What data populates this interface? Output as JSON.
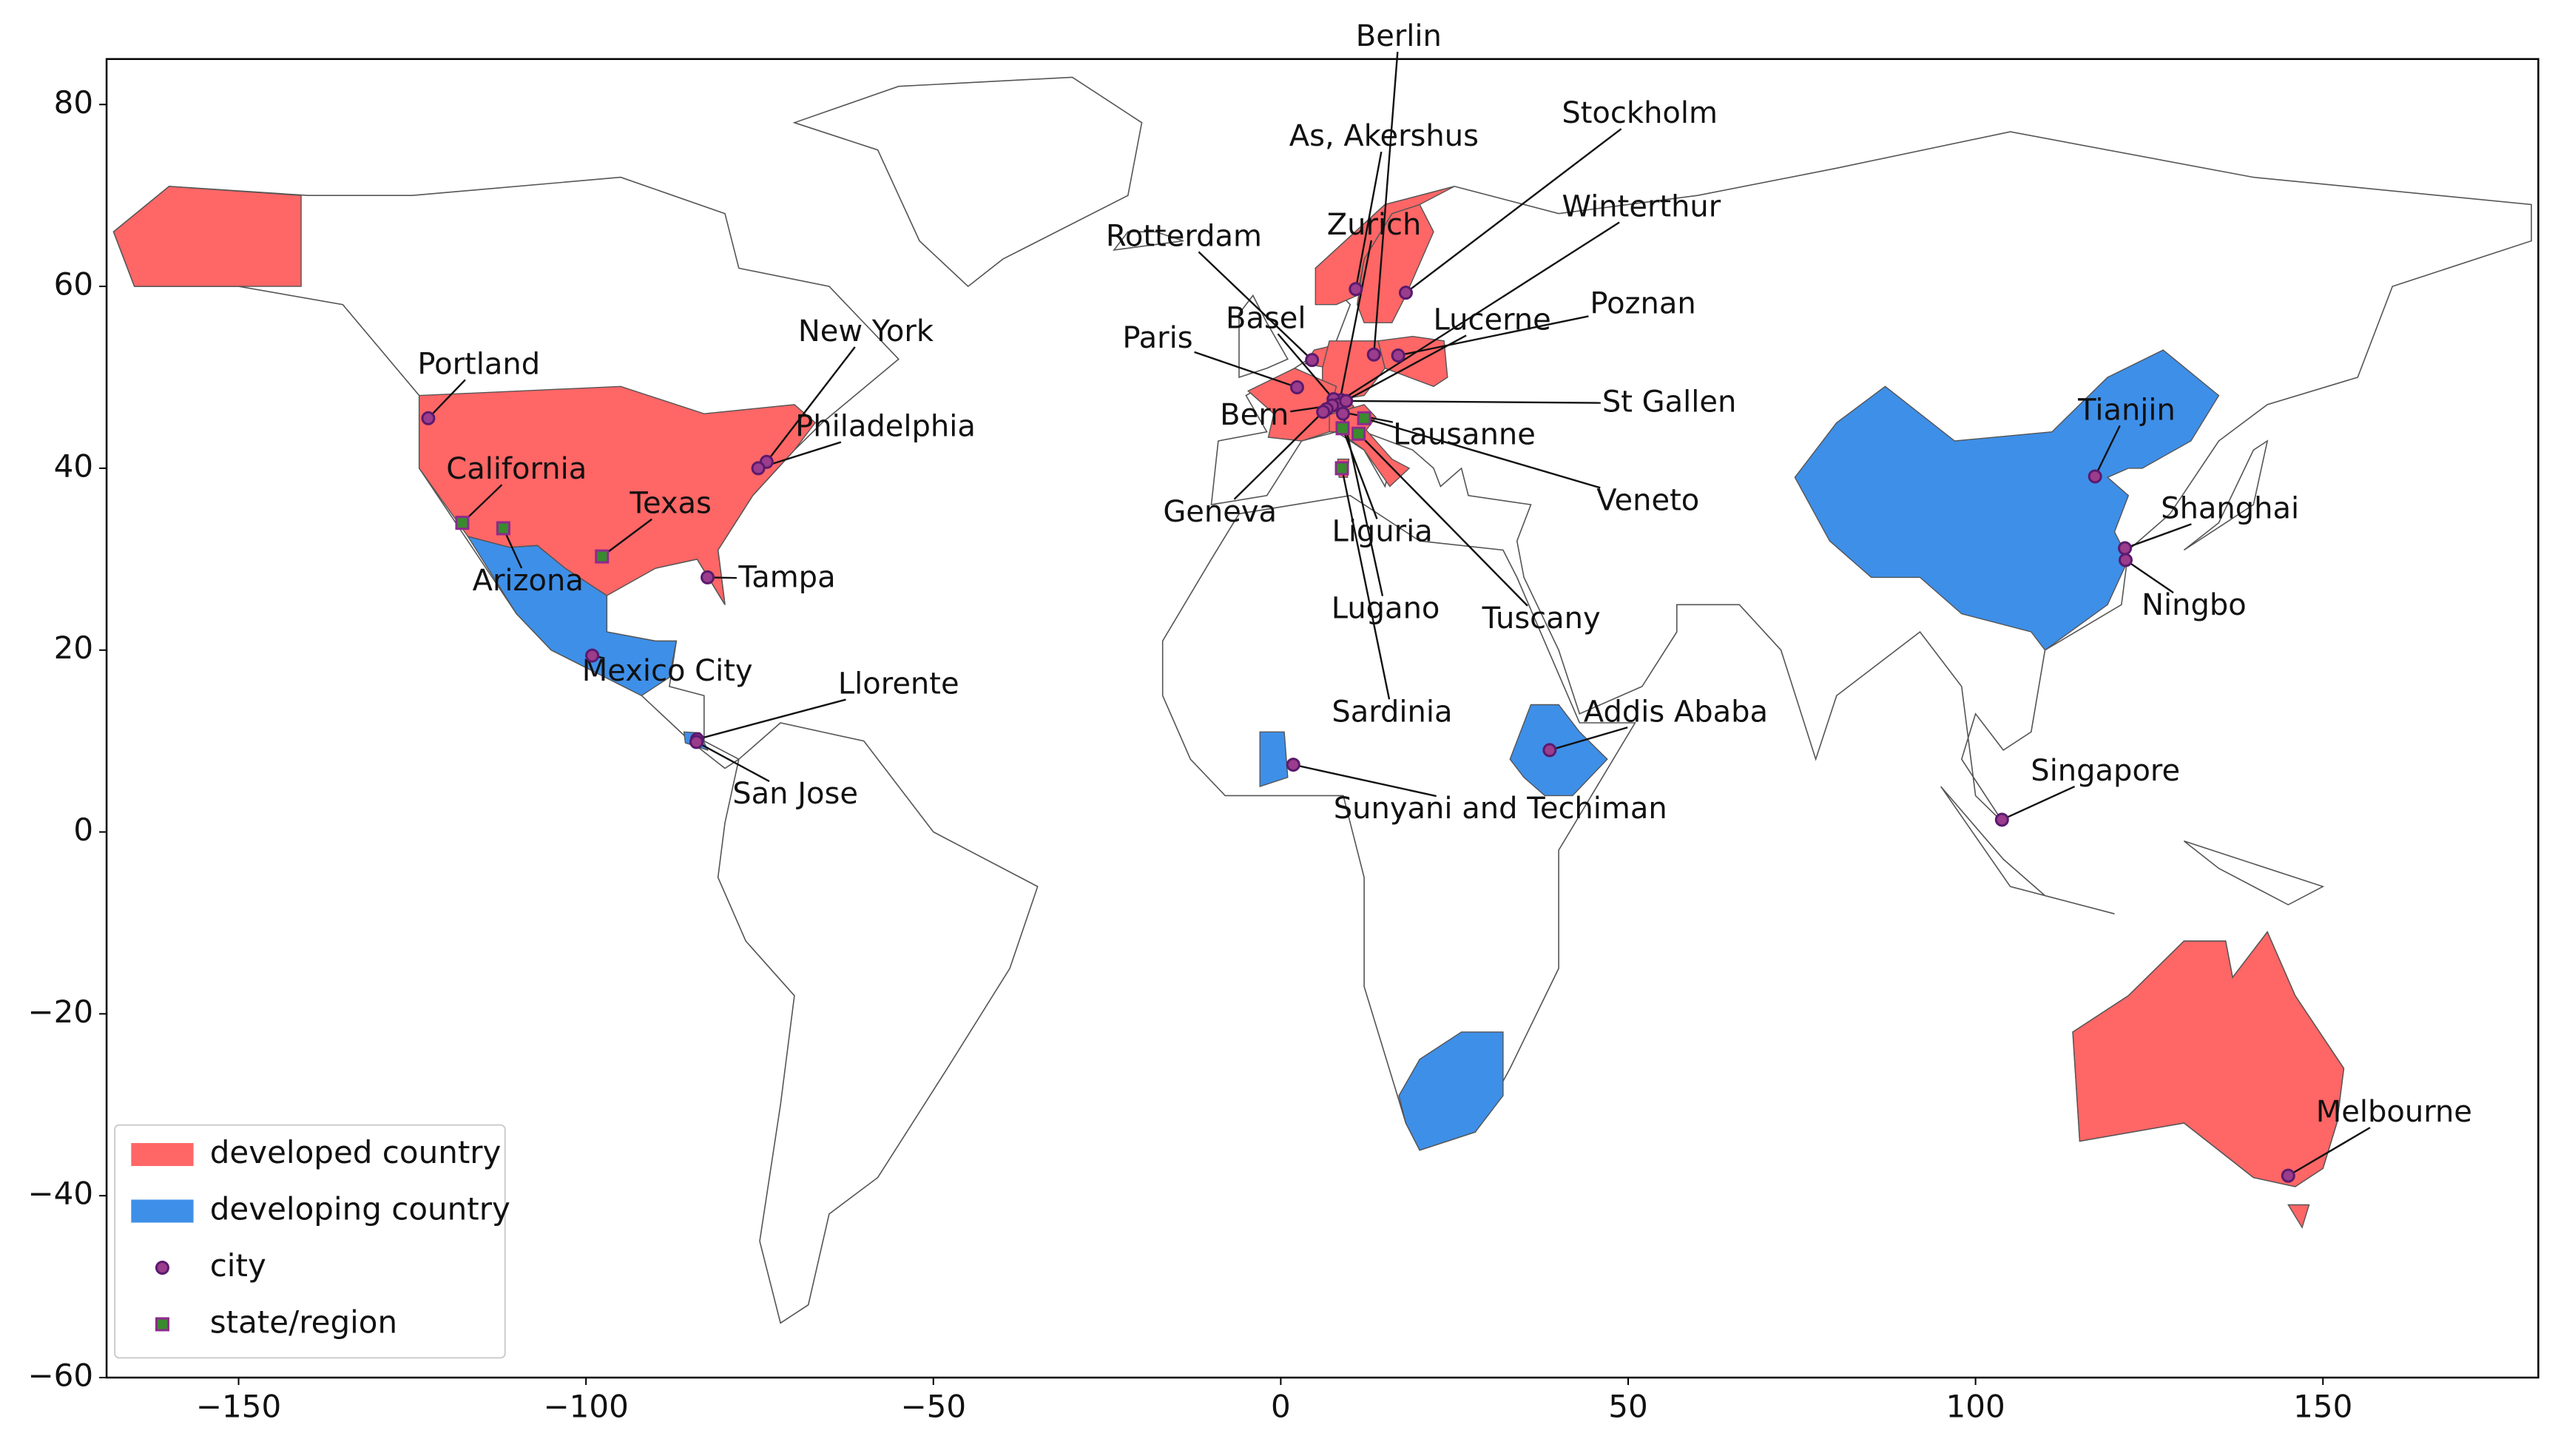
{
  "chart_data": {
    "type": "scatter",
    "xlim": [
      -169,
      181
    ],
    "ylim": [
      -60,
      85
    ],
    "xticks": [
      {
        "value": -150,
        "label": "−150"
      },
      {
        "value": -100,
        "label": "−100"
      },
      {
        "value": -50,
        "label": "−50"
      },
      0,
      50,
      100,
      150
    ],
    "yticks": [
      {
        "value": -60,
        "label": "−60"
      },
      {
        "value": -40,
        "label": "−40"
      },
      {
        "value": -20,
        "label": "−20"
      },
      0,
      20,
      40,
      60,
      80
    ],
    "legend": "lower left",
    "regions": [
      {
        "name": "developed country",
        "color": "#ff6666"
      },
      {
        "name": "developing country",
        "color": "#3e8fe8"
      }
    ],
    "series": [
      {
        "name": "city",
        "marker": "circle",
        "color": "#9b3c8c",
        "edgecolor": "#5a1a6e",
        "labels": [
          "Portland",
          "New York",
          "Philadelphia",
          "Tampa",
          "Mexico City",
          "Llorente",
          "San Jose",
          "Berlin",
          "As, Akershus",
          "Stockholm",
          "Zurich",
          "Winterthur",
          "Rotterdam",
          "Basel",
          "Paris",
          "Lucerne",
          "Poznan",
          "Bern",
          "St Gallen",
          "Lausanne",
          "Geneva",
          "Lugano",
          "Sunyani and Techiman",
          "Addis Ababa",
          "Tianjin",
          "Shanghai",
          "Ningbo",
          "Singapore",
          "Melbourne"
        ],
        "x": [
          -122.7,
          -74,
          -75.2,
          -82.5,
          -99.1,
          -84,
          -84.1,
          13.4,
          10.8,
          18,
          8.5,
          8.7,
          4.5,
          7.6,
          2.35,
          8.3,
          16.9,
          7.4,
          9.4,
          6.6,
          6.1,
          8.95,
          1.8,
          38.7,
          117.2,
          121.5,
          121.6,
          103.8,
          145
        ],
        "y": [
          45.5,
          40.7,
          40,
          28,
          19.4,
          10.2,
          9.9,
          52.5,
          59.7,
          59.3,
          47.4,
          47.5,
          51.9,
          47.6,
          48.9,
          47,
          52.4,
          46.9,
          47.4,
          46.5,
          46.2,
          46,
          7.4,
          9,
          39.1,
          31.2,
          29.9,
          1.35,
          -37.8
        ]
      },
      {
        "name": "state/region",
        "marker": "square",
        "color": "#3a8a2e",
        "edgecolor": "#8e2a8e",
        "labels": [
          "California",
          "Arizona",
          "Texas",
          "Veneto",
          "Liguria",
          "Tuscany",
          "Sardinia"
        ],
        "x": [
          -117.8,
          -111.9,
          -97.7,
          12,
          8.9,
          11.2,
          8.8
        ],
        "y": [
          34,
          33.4,
          30.3,
          45.5,
          44.4,
          43.8,
          40
        ]
      }
    ]
  }
}
